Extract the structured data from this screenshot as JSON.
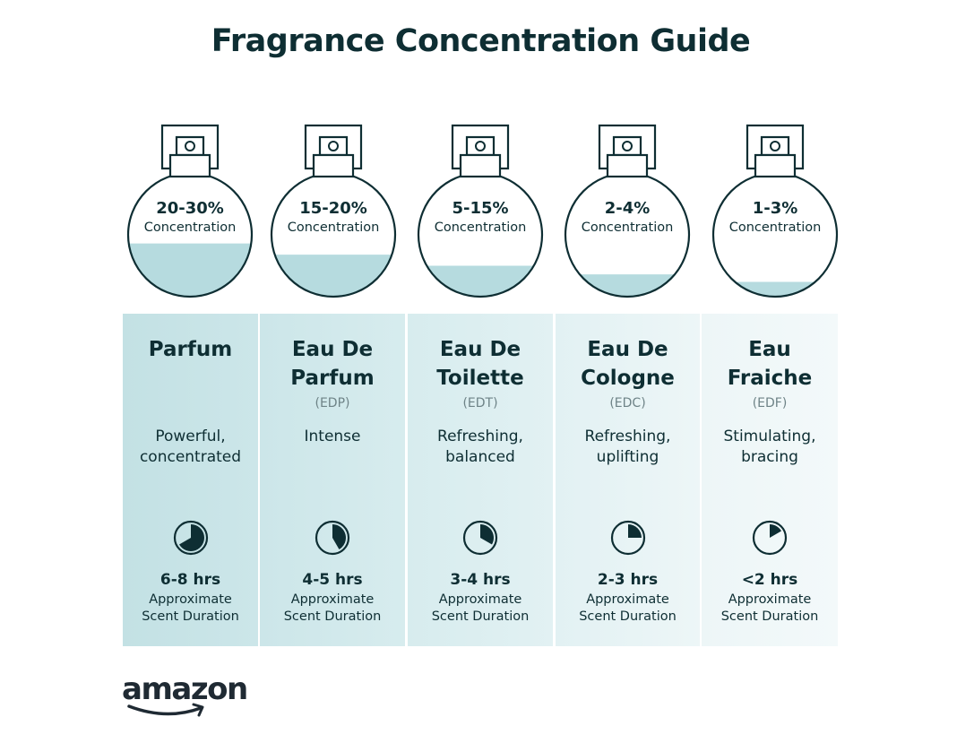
{
  "title": "Fragrance Concentration Guide",
  "colors": {
    "text": "#0e2e33",
    "liquid": "#b6dbdf",
    "abbreviation": "#6e8387"
  },
  "types": [
    {
      "concentration": "20-30%",
      "concentration_label": "Concentration",
      "liquid_fill_level": 0.43,
      "name": "Parfum",
      "abbreviation": "",
      "description": "Powerful,\nconcentrated",
      "clock_fill_hours": 8,
      "duration": "6-8 hrs",
      "duration_label_1": "Approximate",
      "duration_label_2": "Scent Duration",
      "column_color": "#c3e1e4"
    },
    {
      "concentration": "15-20%",
      "concentration_label": "Concentration",
      "liquid_fill_level": 0.34,
      "name": "Eau De\nParfum",
      "abbreviation": "(EDP)",
      "description": "Intense",
      "clock_fill_hours": 5,
      "duration": "4-5 hrs",
      "duration_label_1": "Approximate",
      "duration_label_2": "Scent Duration",
      "column_color": "#cce6e9"
    },
    {
      "concentration": "5-15%",
      "concentration_label": "Concentration",
      "liquid_fill_level": 0.25,
      "name": "Eau De\nToilette",
      "abbreviation": "(EDT)",
      "description": "Refreshing,\nbalanced",
      "clock_fill_hours": 4,
      "duration": "3-4 hrs",
      "duration_label_1": "Approximate",
      "duration_label_2": "Scent Duration",
      "column_color": "#d7ecee"
    },
    {
      "concentration": "2-4%",
      "concentration_label": "Concentration",
      "liquid_fill_level": 0.18,
      "name": "Eau De\nCologne",
      "abbreviation": "(EDC)",
      "description": "Refreshing,\nuplifting",
      "clock_fill_hours": 3,
      "duration": "2-3 hrs",
      "duration_label_1": "Approximate",
      "duration_label_2": "Scent Duration",
      "column_color": "#e2f1f3"
    },
    {
      "concentration": "1-3%",
      "concentration_label": "Concentration",
      "liquid_fill_level": 0.12,
      "name": "Eau\nFraiche",
      "abbreviation": "(EDF)",
      "description": "Stimulating,\nbracing",
      "clock_fill_hours": 2,
      "duration": "<2 hrs",
      "duration_label_1": "Approximate",
      "duration_label_2": "Scent Duration",
      "column_color": "#edf6f7"
    }
  ],
  "logo": "amazon"
}
